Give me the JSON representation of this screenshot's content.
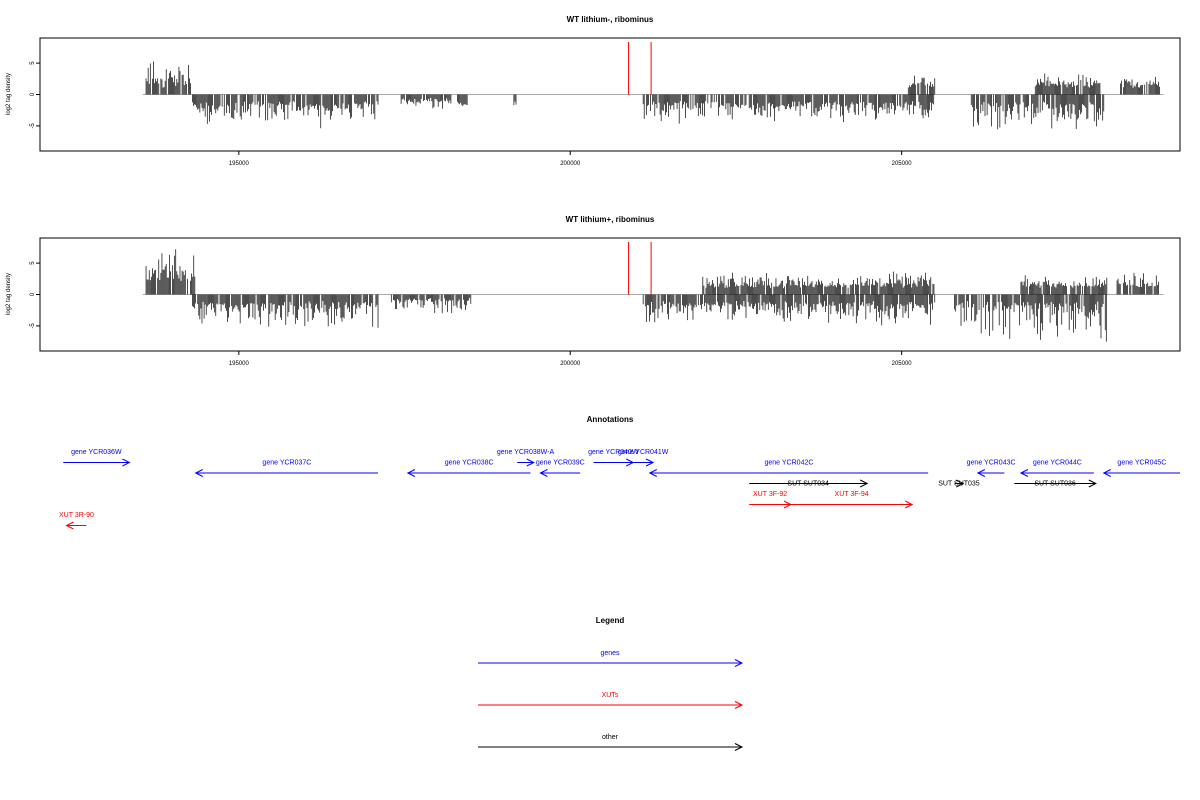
{
  "colors": {
    "genes": "#0000ff",
    "XUTs": "#ff0000",
    "other": "#000000",
    "zero": "#aaaaaa",
    "marker": "#ff0000"
  },
  "chart_data": [
    {
      "type": "bar",
      "title": "WT lithium-, ribominus",
      "ylabel": "log2 tag density",
      "xlim": [
        192000,
        209200
      ],
      "ylim": [
        -9,
        9
      ],
      "x_ticks": [
        195000,
        200000,
        205000
      ],
      "x_tick_labels": [
        "195000",
        "200000",
        "205000"
      ],
      "y_ticks": [
        -5,
        0,
        5
      ],
      "y_tick_labels": [
        "-5",
        "0",
        "5"
      ],
      "markers": [
        200880,
        201220
      ],
      "segments": [
        {
          "start": 193600,
          "end": 194300,
          "min": 1,
          "max": 6,
          "sign": 1
        },
        {
          "start": 194300,
          "end": 197100,
          "min": 1,
          "max": 5,
          "sign": -1
        },
        {
          "start": 197400,
          "end": 198200,
          "min": 0.5,
          "max": 2,
          "sign": -1
        },
        {
          "start": 198300,
          "end": 198450,
          "min": 1,
          "max": 2,
          "sign": -1
        },
        {
          "start": 199150,
          "end": 199200,
          "min": 1,
          "max": 2,
          "sign": -1
        },
        {
          "start": 201100,
          "end": 205500,
          "min": 1,
          "max": 4.5,
          "sign": -1
        },
        {
          "start": 205100,
          "end": 205500,
          "min": 1,
          "max": 3,
          "sign": 1
        },
        {
          "start": 206050,
          "end": 208050,
          "min": 1,
          "max": 6,
          "sign": -1
        },
        {
          "start": 207000,
          "end": 208000,
          "min": 1,
          "max": 3,
          "sign": 1
        },
        {
          "start": 208300,
          "end": 208900,
          "min": 1,
          "max": 3,
          "sign": 1
        }
      ]
    },
    {
      "type": "bar",
      "title": "WT lithium+, ribominus",
      "ylabel": "log2 tag density",
      "xlim": [
        192000,
        209200
      ],
      "ylim": [
        -9,
        9
      ],
      "x_ticks": [
        195000,
        200000,
        205000
      ],
      "x_tick_labels": [
        "195000",
        "200000",
        "205000"
      ],
      "y_ticks": [
        -5,
        0,
        5
      ],
      "y_tick_labels": [
        "-5",
        "0",
        "5"
      ],
      "markers": [
        200880,
        201220
      ],
      "segments": [
        {
          "start": 193600,
          "end": 194350,
          "min": 2,
          "max": 8,
          "sign": 1
        },
        {
          "start": 194300,
          "end": 197100,
          "min": 1,
          "max": 5.5,
          "sign": -1
        },
        {
          "start": 197300,
          "end": 198500,
          "min": 0.5,
          "max": 3,
          "sign": -1
        },
        {
          "start": 201100,
          "end": 205500,
          "min": 1,
          "max": 5,
          "sign": -1
        },
        {
          "start": 202000,
          "end": 205500,
          "min": 1,
          "max": 3.5,
          "sign": 1
        },
        {
          "start": 205800,
          "end": 208100,
          "min": 1,
          "max": 8,
          "sign": -1
        },
        {
          "start": 206800,
          "end": 208100,
          "min": 1,
          "max": 3,
          "sign": 1
        },
        {
          "start": 208250,
          "end": 208900,
          "min": 1,
          "max": 4,
          "sign": 1
        }
      ]
    }
  ],
  "annotations": {
    "title": "Annotations",
    "xlim": [
      192000,
      209200
    ],
    "features": [
      {
        "label": "gene YCR036W",
        "start": 192350,
        "end": 193350,
        "strand": "+",
        "type": "genes",
        "row": 1,
        "label_row": 0
      },
      {
        "label": "gene YCR037C",
        "start": 194350,
        "end": 197100,
        "strand": "-",
        "type": "genes",
        "row": 2,
        "label_row": 1
      },
      {
        "label": "gene YCR038W-A",
        "start": 199200,
        "end": 199450,
        "strand": "+",
        "type": "genes",
        "row": 1,
        "label_row": 0
      },
      {
        "label": "gene YCR038C",
        "start": 197550,
        "end": 199400,
        "strand": "-",
        "type": "genes",
        "row": 2,
        "label_row": 1
      },
      {
        "label": "gene YCR039C",
        "start": 199550,
        "end": 200150,
        "strand": "-",
        "type": "genes",
        "row": 2,
        "label_row": 1
      },
      {
        "label": "gene YCR040W",
        "start": 200350,
        "end": 200950,
        "strand": "+",
        "type": "genes",
        "row": 1,
        "label_row": 0
      },
      {
        "label": "gene YCR041W",
        "start": 200950,
        "end": 201250,
        "strand": "+",
        "type": "genes",
        "row": 1,
        "label_row": 0
      },
      {
        "label": "gene YCR042C",
        "start": 201200,
        "end": 205400,
        "strand": "-",
        "type": "genes",
        "row": 2,
        "label_row": 1
      },
      {
        "label": "gene YCR043C",
        "start": 206150,
        "end": 206550,
        "strand": "-",
        "type": "genes",
        "row": 2,
        "label_row": 1
      },
      {
        "label": "gene YCR044C",
        "start": 206800,
        "end": 207900,
        "strand": "-",
        "type": "genes",
        "row": 2,
        "label_row": 1
      },
      {
        "label": "gene YCR045C",
        "start": 208050,
        "end": 209200,
        "strand": "-",
        "type": "genes",
        "row": 2,
        "label_row": 1
      },
      {
        "label": "SUT SUT034",
        "start": 202700,
        "end": 204480,
        "strand": "+",
        "type": "other",
        "row": 3,
        "label_row": 3
      },
      {
        "label": "SUT SUT035",
        "start": 205800,
        "end": 205930,
        "strand": "+",
        "type": "other",
        "row": 3,
        "label_row": 3
      },
      {
        "label": "SUT SUT036",
        "start": 206700,
        "end": 207930,
        "strand": "+",
        "type": "other",
        "row": 3,
        "label_row": 3
      },
      {
        "label": "XUT 3F-92",
        "start": 202700,
        "end": 203330,
        "strand": "+",
        "type": "XUTs",
        "row": 5,
        "label_row": 4
      },
      {
        "label": "XUT 3F-94",
        "start": 203330,
        "end": 205160,
        "strand": "+",
        "type": "XUTs",
        "row": 5,
        "label_row": 4
      },
      {
        "label": "XUT 3R-90",
        "start": 192400,
        "end": 192700,
        "strand": "-",
        "type": "XUTs",
        "row": 7,
        "label_row": 6
      }
    ]
  },
  "legend": {
    "title": "Legend",
    "items": [
      {
        "label": "genes",
        "type": "genes"
      },
      {
        "label": "XUTs",
        "type": "XUTs"
      },
      {
        "label": "other",
        "type": "other"
      }
    ]
  }
}
